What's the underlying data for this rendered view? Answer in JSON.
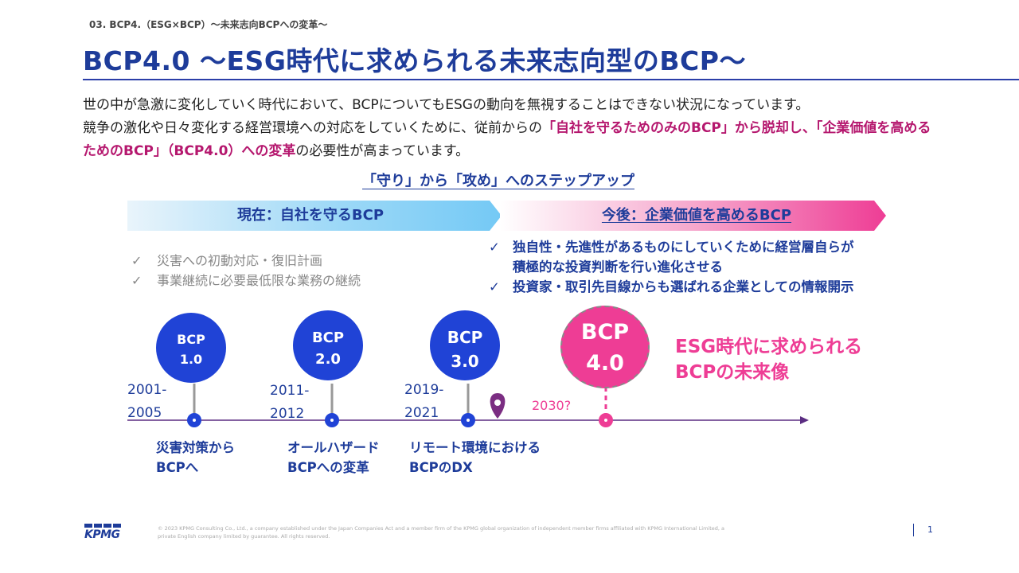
{
  "header": {
    "breadcrumb": "03. BCP4.（ESG×BCP）～未来志向BCPへの変革～",
    "title": "BCP4.0 ～ESG時代に求められる未来志向型のBCP～"
  },
  "intro": {
    "line1": "世の中が急激に変化していく時代において、BCPについてもESGの動向を無視することはできない状況になっています。",
    "line2_prefix": "競争の激化や日々変化する経営環境への対応をしていくために、従前からの",
    "line2_highlight": "「自社を守るためのみのBCP」から脱却し、「企業価値を高めるためのBCP」（BCP4.0）への変革",
    "line2_suffix": "の必要性が高まっています。"
  },
  "step_heading": "「守り」から「攻め」へのステップアップ",
  "current": {
    "label": "現在：自社を守るBCP",
    "items": [
      "災害への初動対応・復旧計画",
      "事業継続に必要最低限な業務の継続"
    ]
  },
  "future": {
    "label": "今後：企業価値を高めるBCP",
    "item1_line1": "独自性・先進性があるものにしていくために経営層自らが",
    "item1_line2": "積極的な投資判断を行い進化させる",
    "item2": "投資家・取引先目線からも選ばれる企業としての情報開示"
  },
  "check_mark": "✓",
  "timeline": {
    "stages": [
      {
        "name": "BCP",
        "version": "1.0",
        "years_1": "2001-",
        "years_2": "2005",
        "event_1": "災害対策から",
        "event_2": "BCPへ"
      },
      {
        "name": "BCP",
        "version": "2.0",
        "years_1": "2011-",
        "years_2": "2012",
        "event_1": "オールハザード",
        "event_2": "BCPへの変革"
      },
      {
        "name": "BCP",
        "version": "3.0",
        "years_1": "2019-",
        "years_2": "2021",
        "event_1": "リモート環境における",
        "event_2": "BCPのDX"
      },
      {
        "name": "BCP",
        "version": "4.0",
        "years_1": "2030?"
      }
    ],
    "future_caption_1": "ESG時代に求められる",
    "future_caption_2": "BCPの未来像",
    "current_marker_icon": "location-pin-icon"
  },
  "footer": {
    "logo": "KPMG",
    "copyright": "© 2023 KPMG Consulting Co., Ltd., a company established under the Japan Companies Act and a member firm of the KPMG global organization of independent member firms affiliated with KPMG International Limited, a private English company limited by guarantee. All rights reserved.",
    "page": "1"
  },
  "colors": {
    "navy": "#1e3c9a",
    "blue_circle": "#2043d6",
    "magenta": "#ee3d95",
    "highlight": "#b5176e",
    "timeline_line": "#5b2d82"
  }
}
